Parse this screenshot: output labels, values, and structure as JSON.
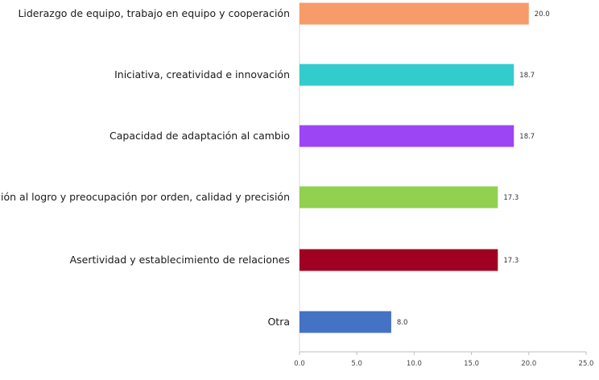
{
  "chart_data": {
    "type": "bar",
    "orientation": "horizontal",
    "categories": [
      "Liderazgo de equipo, trabajo en equipo y cooperación",
      "Iniciativa, creatividad e innovación",
      "Capacidad de adaptación al cambio",
      "Orientación al logro y preocupación por orden, calidad y precisión",
      "Asertividad y establecimiento de relaciones",
      "Otra"
    ],
    "values": [
      20.0,
      18.7,
      18.7,
      17.3,
      17.3,
      8.0
    ],
    "value_labels": [
      "20.0",
      "18.7",
      "18.7",
      "17.3",
      "17.3",
      "8.0"
    ],
    "colors": [
      "#F79B6A",
      "#33CCCC",
      "#9B45F5",
      "#92D050",
      "#A00021",
      "#4472C4"
    ],
    "xlim": [
      0,
      25
    ],
    "x_ticks": [
      "0.0",
      "5.0",
      "10.0",
      "15.0",
      "20.0",
      "25.0"
    ],
    "grid": false,
    "legend": "none",
    "title": "",
    "xlabel": "",
    "ylabel": ""
  }
}
